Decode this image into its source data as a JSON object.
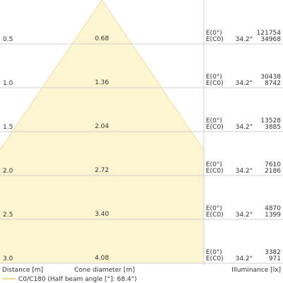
{
  "chart_data": {
    "type": "cone",
    "distance_label": "Distance [m]",
    "diameter_label": "Cone diameter [m]",
    "illuminance_label": "Illuminance [lx]",
    "legend": "C0/C180 (Half beam angle [°]: 68.4°)",
    "color": "#fcf5d2",
    "e0_label": "E(0°)",
    "ec0_label": "E(C0)",
    "half_angle": 34.2,
    "half_angle_label": "34.2°",
    "ylim": [
      0,
      3
    ],
    "yticks": [
      0.5,
      {
        "value": 1,
        "label": "1.0"
      },
      1.5,
      {
        "value": 2,
        "label": "2.0"
      },
      2.5,
      {
        "value": 3,
        "label": "3.0"
      }
    ],
    "diameters": [
      0.68,
      1.36,
      2.04,
      2.72,
      3.4,
      4.08
    ],
    "diameter_labels": [
      "0.68",
      "1.36",
      "2.04",
      "2.72",
      "3.40",
      "4.08"
    ],
    "e0_values": [
      121754,
      30438,
      13528,
      7610,
      4870,
      3382
    ],
    "ec0_values": [
      34968,
      8742,
      3885,
      2186,
      1399,
      971
    ]
  }
}
